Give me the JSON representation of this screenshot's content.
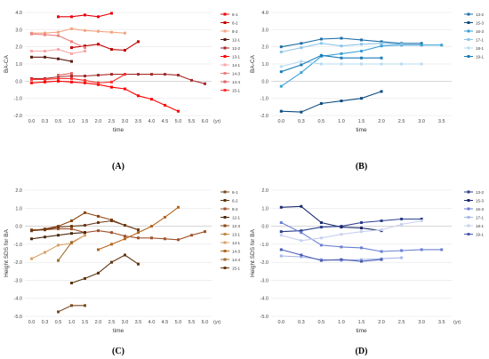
{
  "chart_data": [
    {
      "panel": "(A)",
      "type": "line",
      "ylabel": "BA-CA",
      "xlabel": "time",
      "xunit": "(yr)",
      "ylim": [
        -2.0,
        4.0
      ],
      "yticks": [
        "4.0",
        "3.0",
        "2.0",
        "1.0",
        "0.0",
        "-1.0",
        "-2.0"
      ],
      "xticks": [
        "0.0",
        "0.3",
        "0.5",
        "1.0",
        "1.5",
        "2.0",
        "2.5",
        "3.0",
        "3.5",
        "4.0",
        "4.5",
        "5.0",
        "5.5",
        "6.0"
      ],
      "series": [
        {
          "name": "6-1",
          "color": "#e8000b",
          "points": [
            [
              2,
              3.75
            ],
            [
              3,
              3.75
            ],
            [
              4,
              3.85
            ],
            [
              5,
              3.75
            ],
            [
              6,
              3.95
            ]
          ]
        },
        {
          "name": "6-2",
          "color": "#c00000",
          "points": [
            [
              3,
              1.95
            ],
            [
              4,
              2.05
            ],
            [
              5,
              2.15
            ],
            [
              6,
              1.85
            ],
            [
              7,
              1.8
            ],
            [
              8,
              2.3
            ]
          ]
        },
        {
          "name": "8-2",
          "color": "#f4a582",
          "points": [
            [
              0,
              2.8
            ],
            [
              1,
              2.8
            ],
            [
              2,
              2.85
            ],
            [
              3,
              3.05
            ],
            [
              4,
              2.95
            ],
            [
              5,
              2.9
            ],
            [
              6,
              2.85
            ],
            [
              7,
              2.8
            ]
          ]
        },
        {
          "name": "12-1",
          "color": "#5a1a10",
          "points": [
            [
              0,
              1.4
            ],
            [
              1,
              1.4
            ],
            [
              2,
              1.3
            ],
            [
              3,
              1.15
            ]
          ]
        },
        {
          "name": "12-2",
          "color": "#a52a2a",
          "points": [
            [
              0,
              0.15
            ],
            [
              1,
              0.15
            ],
            [
              2,
              0.25
            ],
            [
              3,
              0.3
            ],
            [
              4,
              0.3
            ],
            [
              5,
              0.35
            ],
            [
              6,
              0.4
            ],
            [
              7,
              0.4
            ],
            [
              8,
              0.4
            ],
            [
              9,
              0.4
            ],
            [
              10,
              0.4
            ],
            [
              11,
              0.35
            ],
            [
              12,
              0.05
            ],
            [
              13,
              -0.15
            ]
          ]
        },
        {
          "name": "13-1",
          "color": "#ff0000",
          "points": [
            [
              0,
              -0.1
            ],
            [
              1,
              -0.05
            ],
            [
              2,
              0.0
            ],
            [
              3,
              -0.05
            ],
            [
              4,
              -0.1
            ],
            [
              5,
              -0.2
            ],
            [
              6,
              -0.35
            ],
            [
              7,
              -0.45
            ],
            [
              8,
              -0.85
            ],
            [
              9,
              -1.05
            ],
            [
              10,
              -1.4
            ],
            [
              11,
              -1.75
            ]
          ]
        },
        {
          "name": "14-1",
          "color": "#f7a8a8",
          "points": [
            [
              0,
              1.75
            ],
            [
              1,
              1.75
            ],
            [
              2,
              1.85
            ],
            [
              3,
              1.6
            ],
            [
              4,
              1.75
            ]
          ]
        },
        {
          "name": "14-3",
          "color": "#f08080",
          "points": [
            [
              0,
              2.75
            ],
            [
              1,
              2.7
            ],
            [
              2,
              2.65
            ],
            [
              3,
              2.3
            ],
            [
              4,
              1.95
            ]
          ]
        },
        {
          "name": "14-4",
          "color": "#e06060",
          "points": [
            [
              2,
              0.35
            ],
            [
              3,
              0.45
            ]
          ]
        },
        {
          "name": "15-1",
          "color": "#ff3030",
          "points": [
            [
              0,
              0.1
            ],
            [
              1,
              0.1
            ],
            [
              2,
              0.15
            ],
            [
              3,
              0.15
            ],
            [
              4,
              0.05
            ],
            [
              5,
              -0.1
            ],
            [
              6,
              -0.05
            ],
            [
              7,
              0.4
            ]
          ]
        }
      ]
    },
    {
      "panel": "(B)",
      "type": "line",
      "ylabel": "BA-CA",
      "xlabel": "time",
      "xunit": "",
      "ylim": [
        -2.0,
        4.0
      ],
      "yticks": [
        "4.0",
        "3.0",
        "2.0",
        "1.0",
        "0.0",
        "-1.0",
        "-2.0"
      ],
      "xticks": [
        "0.0",
        "0.3",
        "0.5",
        "1.0",
        "1.5",
        "2.0",
        "2.5",
        "3.0",
        "3.5"
      ],
      "series": [
        {
          "name": "13-2",
          "color": "#1f6fa8",
          "points": [
            [
              0,
              2.0
            ],
            [
              1,
              2.2
            ],
            [
              2,
              2.45
            ],
            [
              3,
              2.5
            ],
            [
              4,
              2.4
            ],
            [
              5,
              2.3
            ],
            [
              6,
              2.2
            ],
            [
              7,
              2.2
            ]
          ]
        },
        {
          "name": "15-3",
          "color": "#0e4c80",
          "points": [
            [
              0,
              -1.75
            ],
            [
              1,
              -1.8
            ],
            [
              2,
              -1.3
            ],
            [
              3,
              -1.15
            ],
            [
              4,
              -1.0
            ],
            [
              5,
              -0.6
            ]
          ]
        },
        {
          "name": "16-3",
          "color": "#3aa0d8",
          "points": [
            [
              0,
              -0.3
            ],
            [
              1,
              0.5
            ],
            [
              2,
              1.45
            ],
            [
              3,
              1.6
            ],
            [
              4,
              1.75
            ],
            [
              5,
              2.05
            ],
            [
              6,
              2.1
            ],
            [
              7,
              2.1
            ],
            [
              8,
              2.1
            ]
          ]
        },
        {
          "name": "17-1",
          "color": "#8ec5e8",
          "points": [
            [
              0,
              1.7
            ],
            [
              1,
              1.95
            ],
            [
              2,
              2.2
            ],
            [
              3,
              2.05
            ],
            [
              4,
              2.15
            ],
            [
              5,
              2.2
            ],
            [
              6,
              2.15
            ]
          ]
        },
        {
          "name": "18-1",
          "color": "#b9dcf2",
          "points": [
            [
              0,
              0.85
            ],
            [
              1,
              1.15
            ],
            [
              2,
              1.0
            ],
            [
              3,
              1.0
            ],
            [
              4,
              1.0
            ],
            [
              5,
              1.0
            ],
            [
              6,
              1.0
            ],
            [
              7,
              1.0
            ]
          ]
        },
        {
          "name": "19-1",
          "color": "#1a7db8",
          "points": [
            [
              0,
              0.55
            ],
            [
              1,
              0.95
            ],
            [
              2,
              1.5
            ],
            [
              3,
              1.35
            ],
            [
              4,
              1.35
            ],
            [
              5,
              1.35
            ]
          ]
        }
      ]
    },
    {
      "panel": "(C)",
      "type": "line",
      "ylabel": "Height SDS for BA",
      "xlabel": "time",
      "xunit": "(yr)",
      "ylim": [
        -5.0,
        2.0
      ],
      "yticks": [
        "2.0",
        "1.0",
        "0.0",
        "-1.0",
        "-2.0",
        "-3.0",
        "-4.0",
        "-5.0"
      ],
      "xticks": [
        "0.0",
        "0.3",
        "0.5",
        "1.0",
        "1.5",
        "2.0",
        "2.5",
        "3.0",
        "3.5",
        "4.0",
        "4.5",
        "5.0",
        "5.5",
        "6.0"
      ],
      "series": [
        {
          "name": "6-1",
          "color": "#7a4a1c",
          "points": [
            [
              2,
              -4.75
            ],
            [
              3,
              -4.4
            ],
            [
              4,
              -4.4
            ]
          ]
        },
        {
          "name": "6-2",
          "color": "#5c3310",
          "points": [
            [
              3,
              -3.15
            ],
            [
              4,
              -2.9
            ],
            [
              5,
              -2.6
            ],
            [
              6,
              -2.0
            ],
            [
              7,
              -1.6
            ],
            [
              8,
              -2.1
            ]
          ]
        },
        {
          "name": "8-2",
          "color": "#a0522d",
          "points": [
            [
              0,
              -0.2
            ],
            [
              1,
              -0.2
            ],
            [
              2,
              -0.15
            ],
            [
              3,
              -0.15
            ],
            [
              4,
              -0.35
            ],
            [
              5,
              -0.25
            ],
            [
              6,
              -0.35
            ],
            [
              7,
              -0.55
            ],
            [
              8,
              -0.65
            ],
            [
              9,
              -0.65
            ],
            [
              10,
              -0.7
            ],
            [
              11,
              -0.75
            ],
            [
              12,
              -0.5
            ],
            [
              13,
              -0.3
            ]
          ]
        },
        {
          "name": "12-1",
          "color": "#4a2a10",
          "points": [
            [
              0,
              -0.7
            ],
            [
              1,
              -0.6
            ],
            [
              2,
              -0.5
            ],
            [
              3,
              -0.4
            ],
            [
              4,
              -0.35
            ]
          ]
        },
        {
          "name": "12-3",
          "color": "#8b4513",
          "points": [
            [
              0,
              -0.25
            ],
            [
              1,
              -0.15
            ],
            [
              2,
              0.0
            ],
            [
              3,
              0.3
            ],
            [
              4,
              0.75
            ],
            [
              5,
              0.55
            ],
            [
              6,
              0.35
            ],
            [
              7,
              0.05
            ],
            [
              8,
              -0.2
            ]
          ]
        },
        {
          "name": "13-1",
          "color": "#c08a3e",
          "points": [
            [
              3,
              -0.9
            ],
            [
              4,
              -0.5
            ]
          ]
        },
        {
          "name": "14-1",
          "color": "#d9a066",
          "points": [
            [
              0,
              -1.8
            ],
            [
              1,
              -1.45
            ],
            [
              2,
              -1.05
            ],
            [
              3,
              -0.95
            ],
            [
              4,
              -0.5
            ]
          ]
        },
        {
          "name": "14-3",
          "color": "#b5651d",
          "points": [
            [
              5,
              -1.3
            ],
            [
              6,
              -1.0
            ],
            [
              7,
              -0.7
            ],
            [
              8,
              -0.35
            ],
            [
              9,
              0.0
            ],
            [
              10,
              0.5
            ],
            [
              11,
              1.05
            ]
          ]
        },
        {
          "name": "14-4",
          "color": "#9c6b30",
          "points": [
            [
              2,
              -1.9
            ],
            [
              3,
              -0.9
            ]
          ]
        },
        {
          "name": "15-1",
          "color": "#6b3a16",
          "points": [
            [
              0,
              -0.25
            ],
            [
              1,
              -0.2
            ],
            [
              2,
              -0.05
            ],
            [
              3,
              0.0
            ],
            [
              4,
              0.05
            ],
            [
              5,
              0.2
            ],
            [
              6,
              0.3
            ],
            [
              7,
              0.05
            ],
            [
              8,
              -0.2
            ]
          ]
        }
      ]
    },
    {
      "panel": "(D)",
      "type": "line",
      "ylabel": "Height SDS for BA",
      "xlabel": "time",
      "xunit": "(yr)",
      "ylim": [
        -5.0,
        2.0
      ],
      "yticks": [
        "2.0",
        "1.0",
        "0.0",
        "-1.0",
        "-2.0",
        "-3.0",
        "-4.0",
        "-5.0"
      ],
      "xticks": [
        "0.0",
        "0.3",
        "0.5",
        "1.0",
        "1.5",
        "2.0",
        "2.5",
        "3.0",
        "3.5"
      ],
      "series": [
        {
          "name": "13-2",
          "color": "#2b3f8c",
          "points": [
            [
              0,
              -0.3
            ],
            [
              1,
              -0.25
            ],
            [
              2,
              -0.05
            ],
            [
              3,
              0.0
            ],
            [
              4,
              0.2
            ],
            [
              5,
              0.3
            ],
            [
              6,
              0.4
            ],
            [
              7,
              0.4
            ]
          ]
        },
        {
          "name": "15-3",
          "color": "#1a2a6c",
          "points": [
            [
              0,
              1.05
            ],
            [
              1,
              1.1
            ],
            [
              2,
              0.2
            ],
            [
              3,
              -0.05
            ],
            [
              4,
              -0.1
            ],
            [
              5,
              -0.25
            ]
          ]
        },
        {
          "name": "16-3",
          "color": "#6a7fd0",
          "points": [
            [
              0,
              0.2
            ],
            [
              1,
              -0.35
            ],
            [
              2,
              -1.05
            ],
            [
              3,
              -1.15
            ],
            [
              4,
              -1.2
            ],
            [
              5,
              -1.4
            ],
            [
              6,
              -1.35
            ],
            [
              7,
              -1.3
            ],
            [
              8,
              -1.3
            ]
          ]
        },
        {
          "name": "17-1",
          "color": "#a9b6e8",
          "points": [
            [
              0,
              -1.65
            ],
            [
              1,
              -1.7
            ],
            [
              2,
              -1.85
            ],
            [
              3,
              -1.9
            ],
            [
              4,
              -1.85
            ],
            [
              5,
              -1.8
            ],
            [
              6,
              -1.75
            ]
          ]
        },
        {
          "name": "18-1",
          "color": "#c8d0f0",
          "points": [
            [
              0,
              -0.5
            ],
            [
              1,
              -0.8
            ],
            [
              2,
              -0.65
            ],
            [
              3,
              -0.45
            ],
            [
              4,
              -0.3
            ],
            [
              5,
              -0.2
            ],
            [
              6,
              0.1
            ],
            [
              7,
              0.3
            ]
          ]
        },
        {
          "name": "19-1",
          "color": "#4a5cb0",
          "points": [
            [
              0,
              -1.3
            ],
            [
              1,
              -1.6
            ],
            [
              2,
              -1.9
            ],
            [
              3,
              -1.85
            ],
            [
              4,
              -1.95
            ],
            [
              5,
              -1.85
            ]
          ]
        }
      ]
    }
  ]
}
